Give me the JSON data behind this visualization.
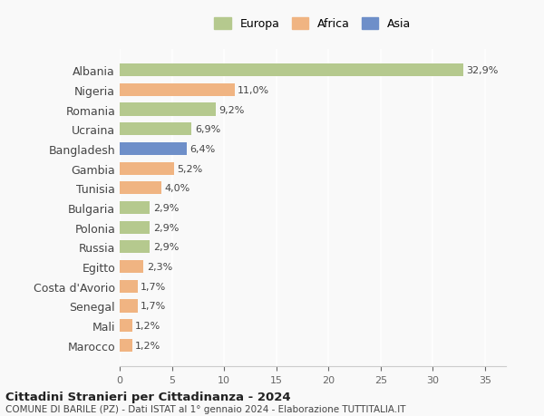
{
  "categories": [
    "Albania",
    "Nigeria",
    "Romania",
    "Ucraina",
    "Bangladesh",
    "Gambia",
    "Tunisia",
    "Bulgaria",
    "Polonia",
    "Russia",
    "Egitto",
    "Costa d'Avorio",
    "Senegal",
    "Mali",
    "Marocco"
  ],
  "values": [
    32.9,
    11.0,
    9.2,
    6.9,
    6.4,
    5.2,
    4.0,
    2.9,
    2.9,
    2.9,
    2.3,
    1.7,
    1.7,
    1.2,
    1.2
  ],
  "labels": [
    "32,9%",
    "11,0%",
    "9,2%",
    "6,9%",
    "6,4%",
    "5,2%",
    "4,0%",
    "2,9%",
    "2,9%",
    "2,9%",
    "2,3%",
    "1,7%",
    "1,7%",
    "1,2%",
    "1,2%"
  ],
  "continent": [
    "Europa",
    "Africa",
    "Europa",
    "Europa",
    "Asia",
    "Africa",
    "Africa",
    "Europa",
    "Europa",
    "Europa",
    "Africa",
    "Africa",
    "Africa",
    "Africa",
    "Africa"
  ],
  "colors": {
    "Europa": "#b5c98e",
    "Africa": "#f0b482",
    "Asia": "#6e8fc9"
  },
  "legend_labels": [
    "Europa",
    "Africa",
    "Asia"
  ],
  "legend_colors": [
    "#b5c98e",
    "#f0b482",
    "#6e8fc9"
  ],
  "xlim": [
    0,
    37
  ],
  "xticks": [
    0,
    5,
    10,
    15,
    20,
    25,
    30,
    35
  ],
  "title": "Cittadini Stranieri per Cittadinanza - 2024",
  "subtitle": "COMUNE DI BARILE (PZ) - Dati ISTAT al 1° gennaio 2024 - Elaborazione TUTTITALIA.IT",
  "bg_color": "#f9f9f9",
  "bar_alpha": 1.0
}
